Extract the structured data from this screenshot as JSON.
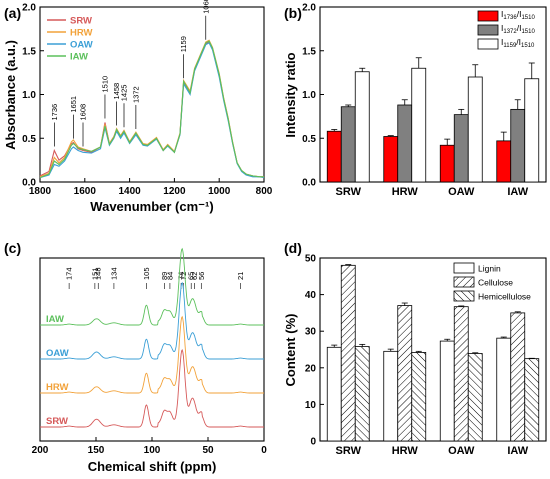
{
  "panels": {
    "a": "(a)",
    "b": "(b)",
    "c": "(c)",
    "d": "(d)"
  },
  "chart_data": [
    {
      "id": "a",
      "type": "line",
      "xlabel": "Wavenumber (cm⁻¹)",
      "ylabel": "Absorbance (a.u.)",
      "xlim": [
        1800,
        800
      ],
      "ylim": [
        0,
        2.0
      ],
      "xticks": [
        1800,
        1600,
        1400,
        1200,
        1000,
        800
      ],
      "yticks": [
        0.0,
        0.5,
        1.0,
        1.5,
        2.0
      ],
      "legend_position": "top-left",
      "annotations": [
        "1736",
        "1651",
        "1608",
        "1510",
        "1458",
        "1425",
        "1372",
        "1159",
        "1060"
      ],
      "annotation_x": [
        1736,
        1651,
        1608,
        1510,
        1458,
        1425,
        1372,
        1159,
        1060
      ],
      "series": [
        {
          "name": "SRW",
          "color": "#d65a5a",
          "x": [
            1800,
            1760,
            1736,
            1715,
            1690,
            1660,
            1651,
            1630,
            1608,
            1570,
            1530,
            1510,
            1490,
            1470,
            1458,
            1440,
            1425,
            1400,
            1372,
            1340,
            1320,
            1280,
            1250,
            1230,
            1200,
            1175,
            1159,
            1130,
            1110,
            1080,
            1060,
            1045,
            1030,
            1000,
            980,
            960,
            940,
            920,
            900,
            880,
            850,
            820,
            800
          ],
          "y": [
            0.07,
            0.12,
            0.36,
            0.25,
            0.3,
            0.44,
            0.45,
            0.38,
            0.36,
            0.34,
            0.4,
            0.68,
            0.44,
            0.52,
            0.6,
            0.52,
            0.58,
            0.46,
            0.56,
            0.43,
            0.42,
            0.5,
            0.36,
            0.42,
            0.34,
            0.55,
            1.14,
            1.02,
            1.28,
            1.46,
            1.58,
            1.6,
            1.52,
            1.22,
            0.95,
            0.72,
            0.45,
            0.22,
            0.13,
            0.09,
            0.07,
            0.06,
            0.06
          ]
        },
        {
          "name": "HRW",
          "color": "#f2a23a",
          "x": [
            1800,
            1760,
            1736,
            1715,
            1690,
            1660,
            1651,
            1630,
            1608,
            1570,
            1530,
            1510,
            1490,
            1470,
            1458,
            1440,
            1425,
            1400,
            1372,
            1340,
            1320,
            1280,
            1250,
            1230,
            1200,
            1175,
            1159,
            1130,
            1110,
            1080,
            1060,
            1045,
            1030,
            1000,
            980,
            960,
            940,
            920,
            900,
            880,
            850,
            820,
            800
          ],
          "y": [
            0.06,
            0.1,
            0.28,
            0.22,
            0.28,
            0.46,
            0.48,
            0.4,
            0.38,
            0.35,
            0.4,
            0.66,
            0.44,
            0.52,
            0.61,
            0.53,
            0.59,
            0.46,
            0.57,
            0.44,
            0.43,
            0.51,
            0.37,
            0.43,
            0.35,
            0.56,
            1.16,
            1.04,
            1.3,
            1.48,
            1.6,
            1.62,
            1.54,
            1.24,
            0.96,
            0.73,
            0.46,
            0.22,
            0.13,
            0.09,
            0.07,
            0.06,
            0.06
          ]
        },
        {
          "name": "OAW",
          "color": "#3b9fd6",
          "x": [
            1800,
            1760,
            1736,
            1715,
            1690,
            1660,
            1651,
            1630,
            1608,
            1570,
            1530,
            1510,
            1490,
            1470,
            1458,
            1440,
            1425,
            1400,
            1372,
            1340,
            1320,
            1280,
            1250,
            1230,
            1200,
            1175,
            1159,
            1130,
            1110,
            1080,
            1060,
            1045,
            1030,
            1000,
            980,
            960,
            940,
            920,
            900,
            880,
            850,
            820,
            800
          ],
          "y": [
            0.05,
            0.08,
            0.2,
            0.18,
            0.24,
            0.38,
            0.4,
            0.36,
            0.34,
            0.33,
            0.38,
            0.62,
            0.42,
            0.5,
            0.58,
            0.5,
            0.56,
            0.44,
            0.54,
            0.42,
            0.41,
            0.49,
            0.36,
            0.41,
            0.34,
            0.54,
            1.12,
            1.0,
            1.27,
            1.45,
            1.57,
            1.59,
            1.51,
            1.2,
            0.93,
            0.7,
            0.44,
            0.21,
            0.12,
            0.08,
            0.06,
            0.06,
            0.05
          ]
        },
        {
          "name": "IAW",
          "color": "#5cc05c",
          "x": [
            1800,
            1760,
            1736,
            1715,
            1690,
            1660,
            1651,
            1630,
            1608,
            1570,
            1530,
            1510,
            1490,
            1470,
            1458,
            1440,
            1425,
            1400,
            1372,
            1340,
            1320,
            1280,
            1250,
            1230,
            1200,
            1175,
            1159,
            1130,
            1110,
            1080,
            1060,
            1045,
            1030,
            1000,
            980,
            960,
            940,
            920,
            900,
            880,
            850,
            820,
            800
          ],
          "y": [
            0.05,
            0.09,
            0.24,
            0.2,
            0.26,
            0.42,
            0.44,
            0.39,
            0.37,
            0.35,
            0.4,
            0.64,
            0.43,
            0.51,
            0.6,
            0.52,
            0.58,
            0.45,
            0.56,
            0.43,
            0.42,
            0.5,
            0.36,
            0.42,
            0.34,
            0.55,
            1.15,
            1.02,
            1.29,
            1.47,
            1.59,
            1.61,
            1.53,
            1.23,
            0.95,
            0.72,
            0.45,
            0.22,
            0.13,
            0.09,
            0.07,
            0.06,
            0.06
          ]
        }
      ]
    },
    {
      "id": "b",
      "type": "bar",
      "xlabel": "",
      "ylabel": "Intensity ratio",
      "ylim": [
        0,
        2.0
      ],
      "yticks": [
        0.0,
        0.5,
        1.0,
        1.5,
        2.0
      ],
      "categories": [
        "SRW",
        "HRW",
        "OAW",
        "IAW"
      ],
      "legend_position": "top-right",
      "series": [
        {
          "name_main": "I",
          "name_sub": "1736",
          "name_mid": "/I",
          "name_sub2": "1510",
          "color": "#ff0000",
          "values": [
            0.58,
            0.52,
            0.42,
            0.47
          ],
          "errors": [
            0.02,
            0.01,
            0.07,
            0.1
          ]
        },
        {
          "name_main": "I",
          "name_sub": "1372",
          "name_mid": "/I",
          "name_sub2": "1510",
          "color": "#808080",
          "values": [
            0.86,
            0.88,
            0.77,
            0.83
          ],
          "errors": [
            0.02,
            0.06,
            0.06,
            0.11
          ]
        },
        {
          "name_main": "I",
          "name_sub": "1159",
          "name_mid": "/I",
          "name_sub2": "1510",
          "color": "#ffffff",
          "values": [
            1.26,
            1.3,
            1.2,
            1.18
          ],
          "errors": [
            0.04,
            0.12,
            0.14,
            0.18
          ]
        }
      ]
    },
    {
      "id": "c",
      "type": "line",
      "xlabel": "Chemical shift (ppm)",
      "xlim": [
        200,
        0
      ],
      "xticks": [
        200,
        150,
        100,
        50,
        0
      ],
      "annotations": [
        "174",
        "151",
        "148",
        "134",
        "105",
        "89",
        "84",
        "74",
        "72",
        "65",
        "62",
        "56",
        "21"
      ],
      "annotation_x": [
        174,
        151,
        148,
        134,
        105,
        89,
        84,
        74,
        72,
        65,
        62,
        56,
        21
      ],
      "peaks_ppm": [
        174,
        151,
        148,
        134,
        105,
        89,
        84,
        74,
        72,
        65,
        62,
        56,
        21
      ],
      "series": [
        {
          "name": "IAW",
          "color": "#5cc05c",
          "offset": 3,
          "peak_heights": [
            0.02,
            0.08,
            0.08,
            0.05,
            0.45,
            0.25,
            0.22,
            1.0,
            0.8,
            0.35,
            0.3,
            0.22,
            0.02
          ]
        },
        {
          "name": "OAW",
          "color": "#3b9fd6",
          "offset": 2,
          "peak_heights": [
            0.02,
            0.09,
            0.09,
            0.05,
            0.45,
            0.25,
            0.22,
            1.0,
            0.8,
            0.35,
            0.3,
            0.25,
            0.02
          ]
        },
        {
          "name": "HRW",
          "color": "#f2a23a",
          "offset": 1,
          "peak_heights": [
            0.02,
            0.08,
            0.08,
            0.05,
            0.45,
            0.25,
            0.22,
            1.0,
            0.8,
            0.35,
            0.3,
            0.22,
            0.02
          ]
        },
        {
          "name": "SRW",
          "color": "#d65a5a",
          "offset": 0,
          "peak_heights": [
            0.02,
            0.1,
            0.1,
            0.05,
            0.5,
            0.28,
            0.25,
            1.0,
            0.82,
            0.4,
            0.32,
            0.26,
            0.02
          ]
        }
      ]
    },
    {
      "id": "d",
      "type": "bar",
      "xlabel": "",
      "ylabel": "Content (%)",
      "ylim": [
        0,
        50
      ],
      "yticks": [
        0,
        10,
        20,
        30,
        40,
        50
      ],
      "categories": [
        "SRW",
        "HRW",
        "OAW",
        "IAW"
      ],
      "legend_position": "top-right",
      "series": [
        {
          "name": "Lignin",
          "pattern": "none",
          "values": [
            25.6,
            24.5,
            27.3,
            28.1
          ],
          "errors": [
            0.6,
            0.6,
            0.5,
            0.3
          ]
        },
        {
          "name": "Cellulose",
          "pattern": "hatch-right",
          "values": [
            48.0,
            37.0,
            36.7,
            35.0
          ],
          "errors": [
            0.2,
            0.7,
            0.2,
            0.3
          ]
        },
        {
          "name": "Hemicellulose",
          "pattern": "hatch-left",
          "values": [
            25.8,
            24.2,
            23.9,
            22.5
          ],
          "errors": [
            0.6,
            0.3,
            0.2,
            0.1
          ]
        }
      ]
    }
  ]
}
